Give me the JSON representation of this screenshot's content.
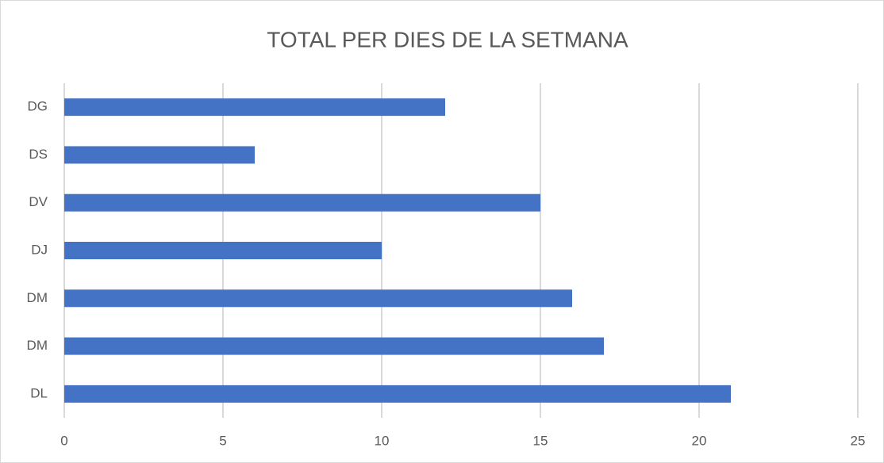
{
  "chart_data": {
    "type": "bar",
    "orientation": "horizontal",
    "title": "TOTAL PER DIES DE LA SETMANA",
    "categories": [
      "DL",
      "DM",
      "DM",
      "DJ",
      "DV",
      "DS",
      "DG"
    ],
    "values": [
      21,
      17,
      16,
      10,
      15,
      6,
      12
    ],
    "color": "#4472c4",
    "xlim": [
      0,
      25
    ],
    "xticks": [
      0,
      5,
      10,
      15,
      20,
      25
    ],
    "grid": true
  }
}
